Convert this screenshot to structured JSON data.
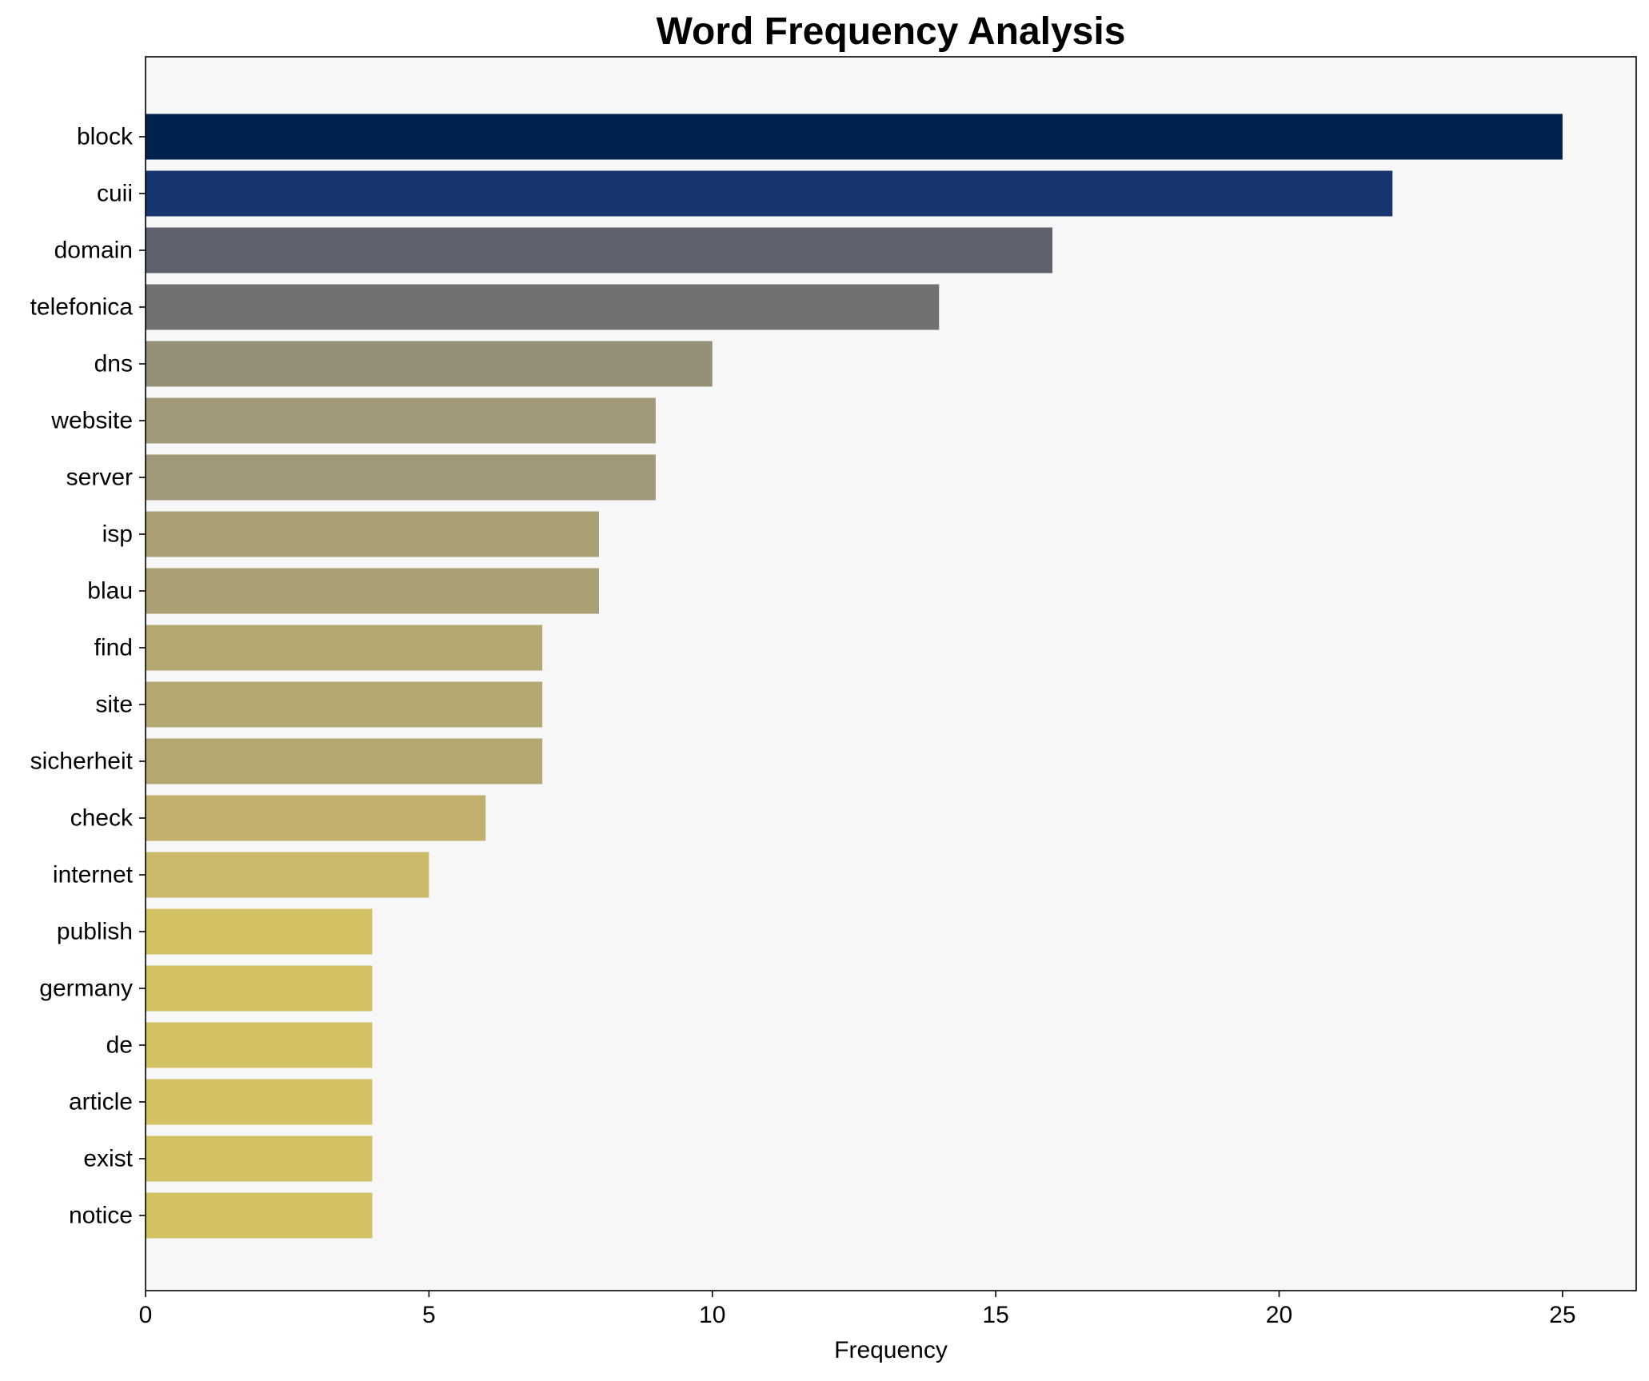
{
  "chart_data": {
    "type": "bar",
    "orientation": "horizontal",
    "title": "Word Frequency Analysis",
    "xlabel": "Frequency",
    "ylabel": "",
    "xlim": [
      0,
      26.3
    ],
    "xticks": [
      0,
      5,
      10,
      15,
      20,
      25
    ],
    "grid": false,
    "legend": "none",
    "background": "#f7f7f7",
    "categories": [
      "block",
      "cuii",
      "domain",
      "telefonica",
      "dns",
      "website",
      "server",
      "isp",
      "blau",
      "find",
      "site",
      "sicherheit",
      "check",
      "internet",
      "publish",
      "germany",
      "de",
      "article",
      "exist",
      "notice"
    ],
    "values": [
      25,
      22,
      16,
      14,
      10,
      9,
      9,
      8,
      8,
      7,
      7,
      7,
      6,
      5,
      4,
      4,
      4,
      4,
      4,
      4
    ],
    "colors": [
      "#00224e",
      "#17366f",
      "#5e626e",
      "#707173",
      "#958f78",
      "#a09878",
      "#a09878",
      "#aaa074",
      "#aaa074",
      "#b3a772",
      "#b3a772",
      "#b3a772",
      "#c1b06c",
      "#cab969",
      "#d3c264",
      "#d3c264",
      "#d3c264",
      "#d3c264",
      "#d3c264",
      "#d3c264"
    ]
  }
}
